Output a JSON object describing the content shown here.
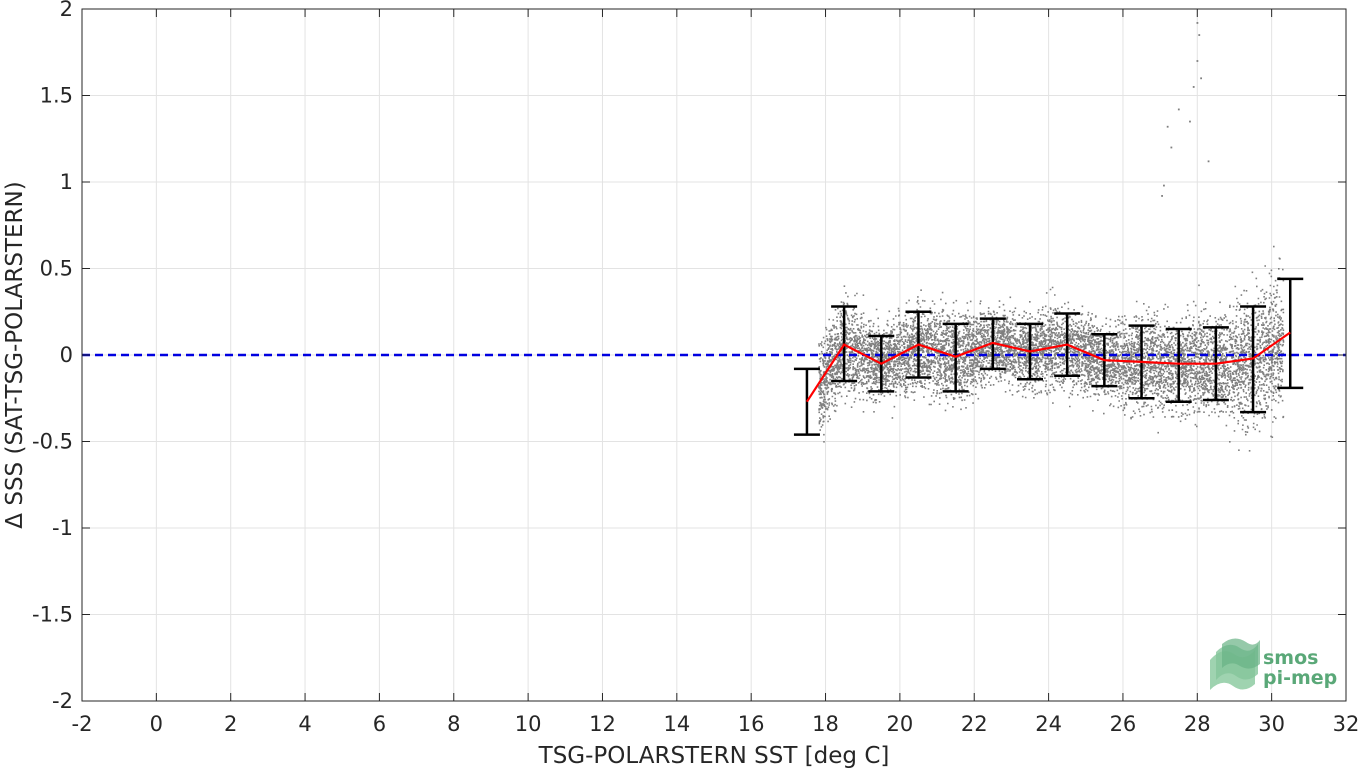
{
  "chart_data": {
    "type": "scatter",
    "title": "",
    "xlabel": "TSG-POLARSTERN SST [deg C]",
    "ylabel": "Δ SSS (SAT-TSG-POLARSTERN)",
    "xlim": [
      -2,
      32
    ],
    "ylim": [
      -2,
      2
    ],
    "xticks": [
      -2,
      0,
      2,
      4,
      6,
      8,
      10,
      12,
      14,
      16,
      18,
      20,
      22,
      24,
      26,
      28,
      30,
      32
    ],
    "yticks": [
      -2,
      -1.5,
      -1,
      -0.5,
      0,
      0.5,
      1,
      1.5,
      2
    ],
    "xtick_labels": [
      "-2",
      "0",
      "2",
      "4",
      "6",
      "8",
      "10",
      "12",
      "14",
      "16",
      "18",
      "20",
      "22",
      "24",
      "26",
      "28",
      "30",
      "32"
    ],
    "ytick_labels": [
      "-2",
      "-1.5",
      "-1",
      "-0.5",
      "0",
      "0.5",
      "1",
      "1.5",
      "2"
    ],
    "grid": true,
    "reference_line": {
      "y": 0,
      "style": "dashed",
      "color": "#0000e0"
    },
    "scatter_cloud": {
      "color": "#7f7f7f",
      "x_range": [
        17.8,
        30.3
      ],
      "typical_y_range": [
        -0.7,
        0.9
      ],
      "outliers": [
        {
          "x": 27.2,
          "y": 1.32
        },
        {
          "x": 27.5,
          "y": 1.42
        },
        {
          "x": 27.9,
          "y": 1.55
        },
        {
          "x": 28.0,
          "y": 1.7
        },
        {
          "x": 28.05,
          "y": 1.85
        },
        {
          "x": 28.0,
          "y": 1.92
        },
        {
          "x": 28.1,
          "y": 1.6
        },
        {
          "x": 27.1,
          "y": 0.98
        },
        {
          "x": 27.05,
          "y": 0.92
        },
        {
          "x": 28.3,
          "y": 1.12
        },
        {
          "x": 27.3,
          "y": 1.2
        },
        {
          "x": 27.8,
          "y": 1.35
        }
      ]
    },
    "binned_stats": {
      "line_color": "#ff0000",
      "errorbar_color": "#000000",
      "bins": [
        {
          "x": 17.5,
          "mean": -0.27,
          "lower": -0.46,
          "upper": -0.08
        },
        {
          "x": 18.5,
          "mean": 0.06,
          "lower": -0.15,
          "upper": 0.28
        },
        {
          "x": 19.5,
          "mean": -0.05,
          "lower": -0.21,
          "upper": 0.11
        },
        {
          "x": 20.5,
          "mean": 0.06,
          "lower": -0.13,
          "upper": 0.25
        },
        {
          "x": 21.5,
          "mean": -0.01,
          "lower": -0.21,
          "upper": 0.18
        },
        {
          "x": 22.5,
          "mean": 0.07,
          "lower": -0.08,
          "upper": 0.21
        },
        {
          "x": 23.5,
          "mean": 0.02,
          "lower": -0.14,
          "upper": 0.18
        },
        {
          "x": 24.5,
          "mean": 0.06,
          "lower": -0.12,
          "upper": 0.24
        },
        {
          "x": 25.5,
          "mean": -0.03,
          "lower": -0.18,
          "upper": 0.12
        },
        {
          "x": 26.5,
          "mean": -0.04,
          "lower": -0.25,
          "upper": 0.17
        },
        {
          "x": 27.5,
          "mean": -0.05,
          "lower": -0.27,
          "upper": 0.15
        },
        {
          "x": 28.5,
          "mean": -0.05,
          "lower": -0.26,
          "upper": 0.16
        },
        {
          "x": 29.5,
          "mean": -0.02,
          "lower": -0.33,
          "upper": 0.28
        },
        {
          "x": 30.5,
          "mean": 0.13,
          "lower": -0.19,
          "upper": 0.44
        }
      ]
    }
  },
  "logo": {
    "line1": "smos",
    "line2": "pi-mep",
    "color": "#5aa878"
  }
}
